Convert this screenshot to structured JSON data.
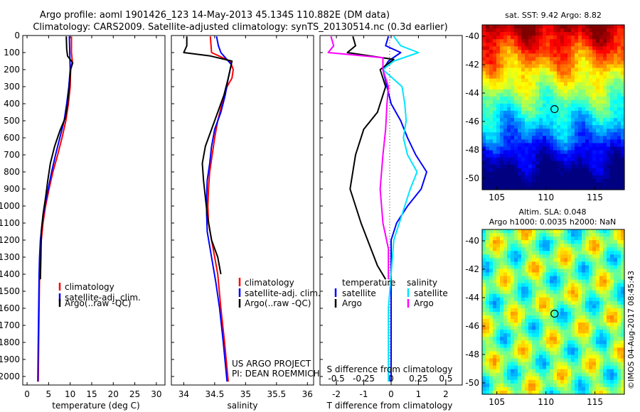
{
  "header": {
    "line1": "Argo profile: aoml 1901426_123 14-May-2013 45.134S 110.882E (DM data)",
    "line2": "Climatology: CARS2009. Satellite-adjusted climatology: synTS_20130514.nc (0.3d earlier)"
  },
  "credits": {
    "project": "US ARGO PROJECT",
    "pi": "PI: DEAN ROEMMICH",
    "imos": "©IMOS 04-Aug-2017 08:45:43"
  },
  "colors": {
    "climatology": "#ff0000",
    "satellite": "#0000ff",
    "argo": "#000000",
    "sal_satellite": "#00e5ff",
    "sal_argo": "#ff00ff"
  },
  "chart_data": [
    {
      "id": "temperature",
      "type": "line",
      "xlabel": "temperature (deg C)",
      "ylim": [
        2050,
        0
      ],
      "xlim": [
        -1,
        32
      ],
      "xticks": [
        0,
        5,
        10,
        15,
        20,
        25,
        30
      ],
      "yticks": [
        0,
        100,
        200,
        300,
        400,
        500,
        600,
        700,
        800,
        900,
        1000,
        1100,
        1200,
        1300,
        1400,
        1500,
        1600,
        1700,
        1800,
        1900,
        2000
      ],
      "legend": [
        "climatology",
        "satellite-adj. clim.",
        "Argo(..raw -QC)"
      ],
      "series": [
        {
          "name": "climatology",
          "color": "#ff0000",
          "points": [
            [
              10.3,
              5
            ],
            [
              10.3,
              100
            ],
            [
              10.5,
              150
            ],
            [
              10.1,
              200
            ],
            [
              10.0,
              300
            ],
            [
              9.6,
              400
            ],
            [
              9.0,
              500
            ],
            [
              8.1,
              600
            ],
            [
              7.1,
              700
            ],
            [
              6.0,
              800
            ],
            [
              5.1,
              900
            ],
            [
              4.3,
              1000
            ],
            [
              3.7,
              1100
            ],
            [
              3.3,
              1200
            ],
            [
              3.0,
              1300
            ],
            [
              2.9,
              1400
            ],
            [
              2.8,
              1600
            ],
            [
              2.7,
              1800
            ],
            [
              2.6,
              2030
            ]
          ]
        },
        {
          "name": "satellite-adj. clim.",
          "color": "#0000ff",
          "points": [
            [
              9.8,
              5
            ],
            [
              9.9,
              100
            ],
            [
              10.0,
              200
            ],
            [
              9.7,
              300
            ],
            [
              9.2,
              400
            ],
            [
              8.6,
              500
            ],
            [
              7.6,
              600
            ],
            [
              6.6,
              700
            ],
            [
              5.7,
              800
            ],
            [
              4.9,
              900
            ],
            [
              4.1,
              1000
            ],
            [
              3.5,
              1100
            ],
            [
              3.1,
              1200
            ],
            [
              2.9,
              1300
            ],
            [
              2.8,
              1400
            ],
            [
              2.7,
              1600
            ],
            [
              2.6,
              1800
            ],
            [
              2.5,
              2030
            ]
          ]
        },
        {
          "name": "Argo(..raw -QC)",
          "color": "#000000",
          "points": [
            [
              9.1,
              5
            ],
            [
              9.2,
              80
            ],
            [
              9.4,
              120
            ],
            [
              10.6,
              160
            ],
            [
              10.1,
              200
            ],
            [
              9.8,
              300
            ],
            [
              9.4,
              400
            ],
            [
              8.9,
              480
            ],
            [
              7.6,
              560
            ],
            [
              6.4,
              650
            ],
            [
              5.4,
              750
            ],
            [
              4.8,
              850
            ],
            [
              4.3,
              950
            ],
            [
              3.7,
              1050
            ],
            [
              3.3,
              1150
            ],
            [
              3.2,
              1300
            ],
            [
              3.1,
              1430
            ]
          ]
        }
      ]
    },
    {
      "id": "salinity",
      "type": "line",
      "xlabel": "salinity",
      "ylim": [
        2050,
        0
      ],
      "xlim": [
        33.8,
        36.1
      ],
      "xticks": [
        34,
        34.5,
        35,
        35.5,
        36
      ],
      "legend": [
        "climatology",
        "satellite-adj. clim.",
        "Argo(..raw -QC)"
      ],
      "series": [
        {
          "name": "climatology",
          "color": "#ff0000",
          "points": [
            [
              34.43,
              5
            ],
            [
              34.45,
              100
            ],
            [
              34.75,
              150
            ],
            [
              34.8,
              200
            ],
            [
              34.78,
              250
            ],
            [
              34.7,
              300
            ],
            [
              34.62,
              400
            ],
            [
              34.55,
              500
            ],
            [
              34.5,
              600
            ],
            [
              34.46,
              700
            ],
            [
              34.42,
              800
            ],
            [
              34.4,
              900
            ],
            [
              34.39,
              1000
            ],
            [
              34.4,
              1100
            ],
            [
              34.45,
              1200
            ],
            [
              34.5,
              1300
            ],
            [
              34.55,
              1400
            ],
            [
              34.6,
              1600
            ],
            [
              34.66,
              1800
            ],
            [
              34.72,
              2030
            ]
          ]
        },
        {
          "name": "satellite-adj. clim.",
          "color": "#0000ff",
          "points": [
            [
              34.53,
              5
            ],
            [
              34.56,
              60
            ],
            [
              34.6,
              100
            ],
            [
              34.77,
              170
            ],
            [
              34.72,
              250
            ],
            [
              34.67,
              350
            ],
            [
              34.6,
              450
            ],
            [
              34.5,
              550
            ],
            [
              34.45,
              650
            ],
            [
              34.42,
              750
            ],
            [
              34.38,
              850
            ],
            [
              34.37,
              950
            ],
            [
              34.37,
              1050
            ],
            [
              34.38,
              1150
            ],
            [
              34.45,
              1300
            ],
            [
              34.52,
              1450
            ],
            [
              34.58,
              1600
            ],
            [
              34.64,
              1800
            ],
            [
              34.7,
              2030
            ]
          ]
        },
        {
          "name": "Argo(..raw -QC)",
          "color": "#000000",
          "points": [
            [
              34.05,
              5
            ],
            [
              34.05,
              60
            ],
            [
              34.0,
              100
            ],
            [
              34.43,
              120
            ],
            [
              34.78,
              150
            ],
            [
              34.72,
              250
            ],
            [
              34.65,
              350
            ],
            [
              34.55,
              450
            ],
            [
              34.45,
              550
            ],
            [
              34.35,
              650
            ],
            [
              34.3,
              750
            ],
            [
              34.32,
              850
            ],
            [
              34.35,
              950
            ],
            [
              34.38,
              1050
            ],
            [
              34.45,
              1200
            ],
            [
              34.55,
              1300
            ],
            [
              34.6,
              1400
            ]
          ]
        }
      ]
    },
    {
      "id": "difference",
      "type": "line",
      "xlabel": "T difference from climatology",
      "xlabel_top": "S difference from climatology",
      "ylim": [
        2050,
        0
      ],
      "xlim": [
        -2.6,
        2.6
      ],
      "xticks": [
        -2,
        -1,
        0,
        1,
        2
      ],
      "xticks_top_labels": [
        "-0.5",
        "-0.25",
        "0",
        "0.25",
        "0.5"
      ],
      "legend_temperature": {
        "title": "temperature",
        "items": [
          "satellite",
          "Argo"
        ]
      },
      "legend_salinity": {
        "title": "salinity",
        "items": [
          "satellite",
          "Argo"
        ]
      },
      "series": [
        {
          "name": "T satellite",
          "color": "#0000ff",
          "points": [
            [
              -0.1,
              5
            ],
            [
              -0.2,
              60
            ],
            [
              0.35,
              100
            ],
            [
              -0.1,
              150
            ],
            [
              -0.3,
              200
            ],
            [
              -0.15,
              300
            ],
            [
              0.0,
              400
            ],
            [
              0.35,
              500
            ],
            [
              0.6,
              600
            ],
            [
              0.9,
              700
            ],
            [
              1.3,
              800
            ],
            [
              1.1,
              900
            ],
            [
              0.6,
              1000
            ],
            [
              0.2,
              1100
            ],
            [
              0.0,
              1200
            ],
            [
              0.0,
              1500
            ],
            [
              0.0,
              2030
            ]
          ]
        },
        {
          "name": "T Argo",
          "color": "#000000",
          "points": [
            [
              -1.4,
              5
            ],
            [
              -1.3,
              60
            ],
            [
              -1.6,
              100
            ],
            [
              0.1,
              140
            ],
            [
              -0.4,
              200
            ],
            [
              -0.2,
              300
            ],
            [
              -0.5,
              450
            ],
            [
              -1.0,
              550
            ],
            [
              -1.3,
              700
            ],
            [
              -1.5,
              900
            ],
            [
              -1.1,
              1100
            ],
            [
              -0.5,
              1350
            ],
            [
              -0.2,
              1430
            ]
          ]
        },
        {
          "name": "S satellite",
          "color": "#00e5ff",
          "points": [
            [
              0.1,
              5
            ],
            [
              0.35,
              60
            ],
            [
              1.0,
              100
            ],
            [
              0.1,
              150
            ],
            [
              -0.3,
              200
            ],
            [
              0.4,
              300
            ],
            [
              0.5,
              400
            ],
            [
              0.55,
              500
            ],
            [
              0.45,
              600
            ],
            [
              0.6,
              700
            ],
            [
              0.95,
              800
            ],
            [
              0.7,
              900
            ],
            [
              0.5,
              1000
            ],
            [
              0.1,
              1200
            ],
            [
              0.0,
              1400
            ],
            [
              -0.1,
              1600
            ],
            [
              -0.1,
              2030
            ]
          ]
        },
        {
          "name": "S Argo",
          "color": "#ff00ff",
          "points": [
            [
              -2.2,
              5
            ],
            [
              -2.1,
              60
            ],
            [
              -2.3,
              100
            ],
            [
              -0.3,
              130
            ],
            [
              -0.3,
              200
            ],
            [
              -0.1,
              300
            ],
            [
              -0.15,
              400
            ],
            [
              -0.2,
              550
            ],
            [
              -0.3,
              700
            ],
            [
              -0.4,
              900
            ],
            [
              -0.3,
              1100
            ],
            [
              -0.1,
              1250
            ],
            [
              -0.1,
              1430
            ]
          ]
        }
      ]
    },
    {
      "id": "sst_map",
      "type": "heatmap",
      "title": "sat. SST: 9.42  Argo: 8.82",
      "xticks": [
        105,
        110,
        115
      ],
      "yticks": [
        -40,
        -42,
        -44,
        -46,
        -48,
        -50
      ],
      "xlim": [
        103.5,
        118
      ],
      "ylim": [
        -50.8,
        -39.2
      ],
      "marker": {
        "lon": 110.88,
        "lat": -45.13
      }
    },
    {
      "id": "sla_map",
      "type": "heatmap",
      "title_line1": "Altim. SLA: 0.048",
      "title_line2": "Argo h1000: 0.0035 h2000: NaN",
      "xticks": [
        105,
        110,
        115
      ],
      "yticks": [
        -40,
        -42,
        -44,
        -46,
        -48,
        -50
      ],
      "xlim": [
        103.5,
        118
      ],
      "ylim": [
        -50.8,
        -39.2
      ],
      "marker": {
        "lon": 110.88,
        "lat": -45.13
      }
    }
  ]
}
